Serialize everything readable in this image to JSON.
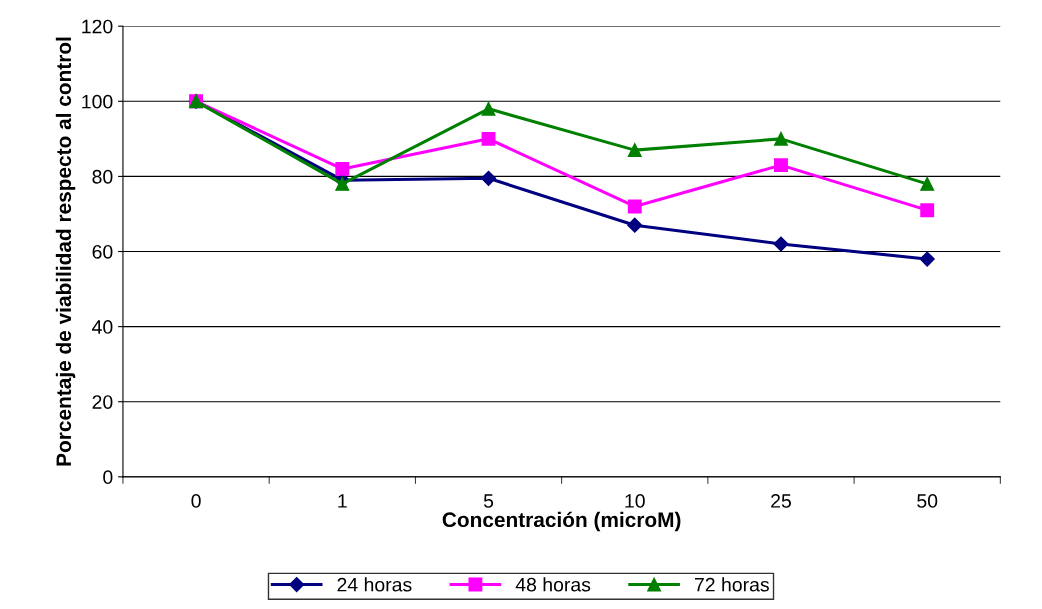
{
  "chart_data": {
    "type": "line",
    "xlabel": "Concentración (microM)",
    "ylabel": "Porcentaje de viabilidad respecto al control",
    "categories": [
      "0",
      "1",
      "5",
      "10",
      "25",
      "50"
    ],
    "series": [
      {
        "name": "24 horas",
        "color": "#000080",
        "marker": "diamond",
        "values": [
          100,
          79,
          79.5,
          67,
          62,
          58
        ]
      },
      {
        "name": "48 horas",
        "color": "#ff00ff",
        "marker": "square",
        "values": [
          100,
          82,
          90,
          72,
          83,
          71
        ]
      },
      {
        "name": "72 horas",
        "color": "#008000",
        "marker": "triangle",
        "values": [
          100,
          78,
          98,
          87,
          90,
          78
        ]
      }
    ],
    "ylim": [
      0,
      120
    ],
    "yticks": [
      0,
      20,
      40,
      60,
      80,
      100,
      120
    ],
    "grid": "y",
    "legend": "bottom",
    "line_style": "solid"
  }
}
